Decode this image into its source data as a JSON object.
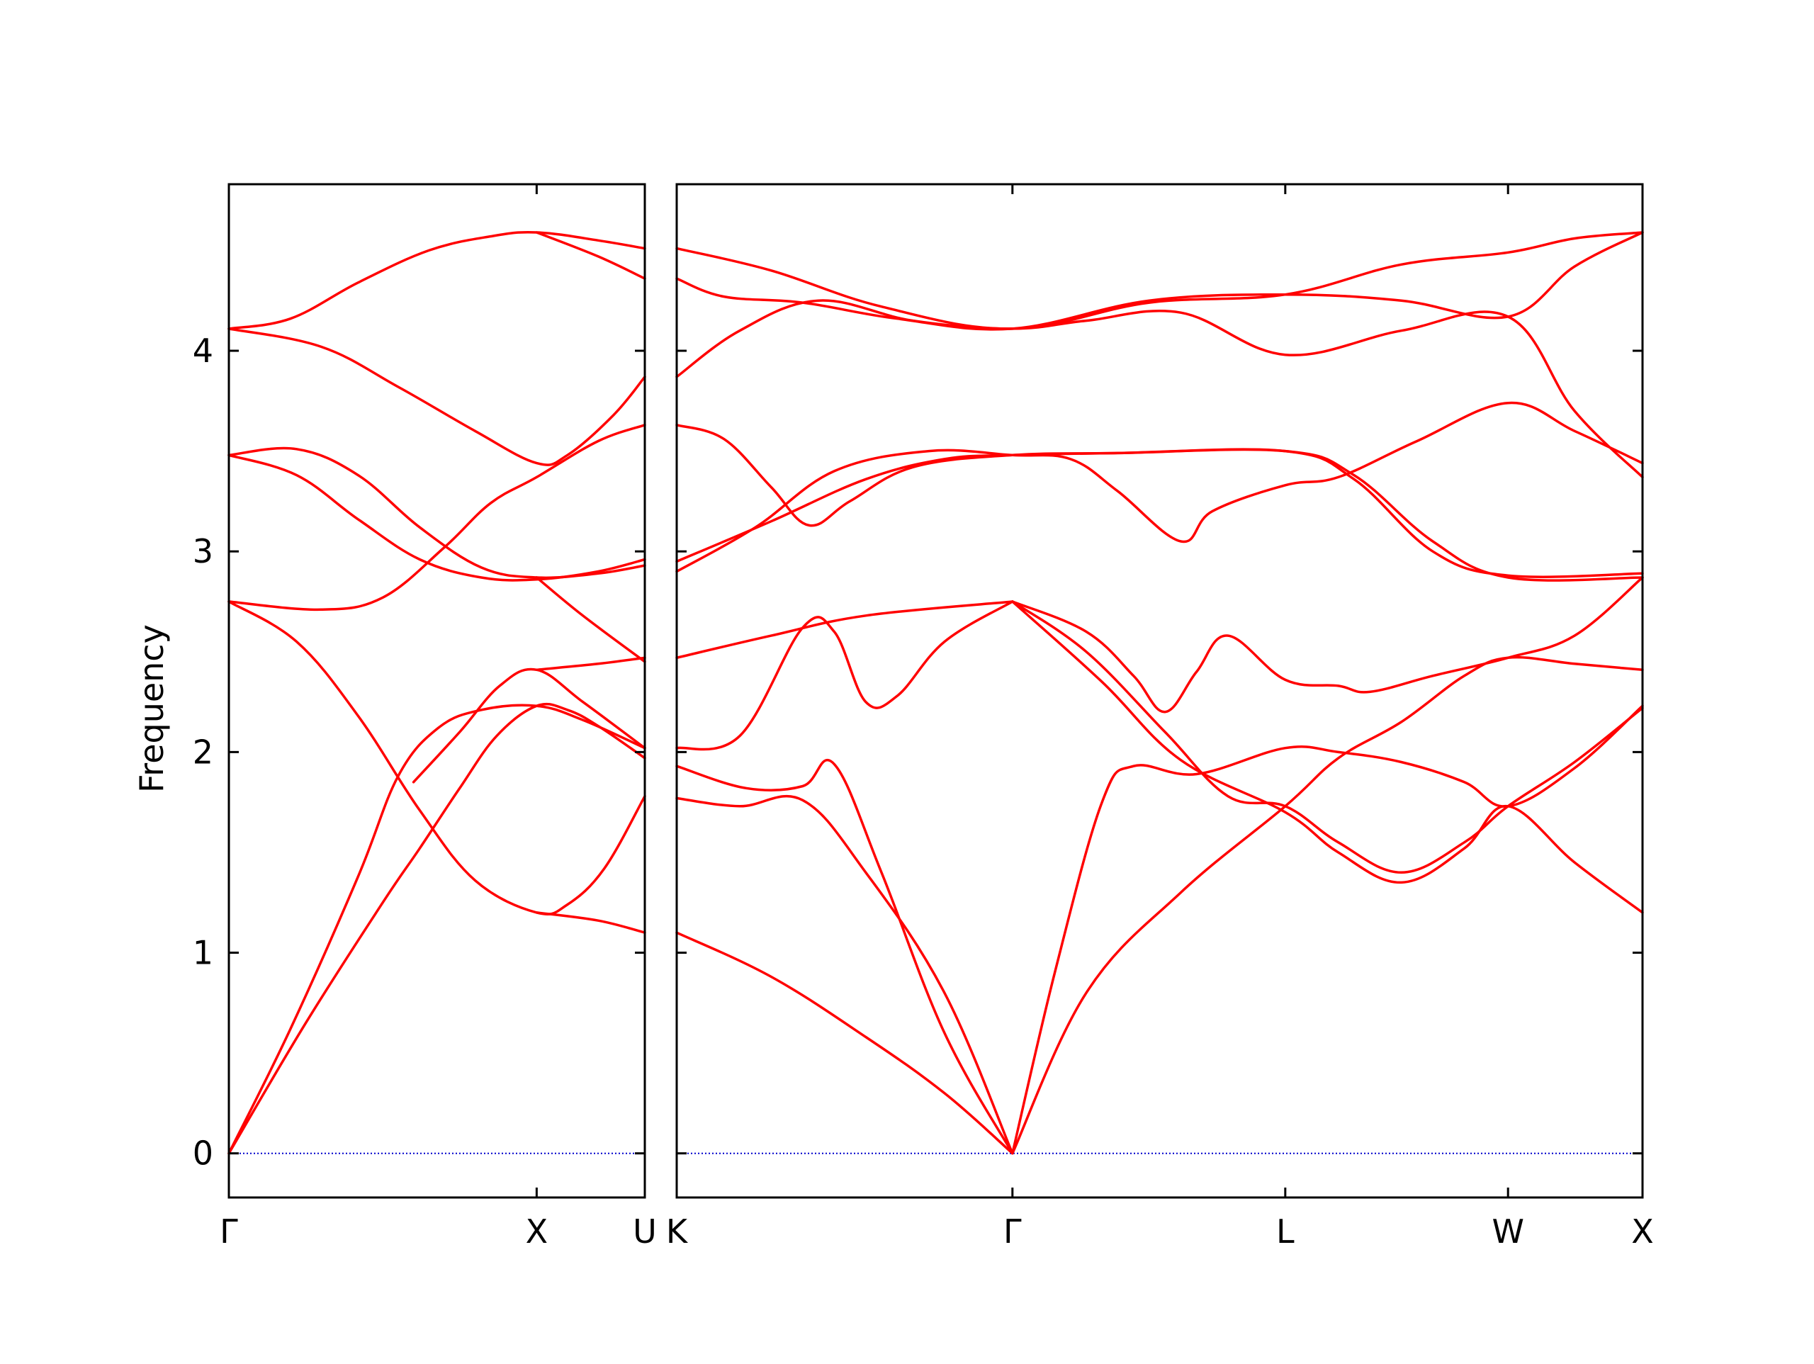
{
  "chart_data": {
    "type": "line",
    "ylabel": "Frequency",
    "ylim": [
      -0.22,
      4.83
    ],
    "yticks": [
      0,
      1,
      2,
      3,
      4
    ],
    "line_color": "#ff0000",
    "zero_line_color": "#0000cc",
    "grid": false,
    "legend": "none",
    "panels": [
      {
        "name": "left",
        "xlim": [
          0,
          1.3514
        ],
        "ticks": [
          {
            "label": "Γ",
            "x": 0
          },
          {
            "label": "X",
            "x": 1.0
          },
          {
            "label": "U",
            "x": 1.3514
          }
        ],
        "bands": [
          [
            [
              0,
              0
            ],
            [
              0.25,
              0.65
            ],
            [
              0.5,
              1.25
            ],
            [
              0.62,
              1.52
            ],
            [
              0.75,
              1.82
            ],
            [
              0.87,
              2.08
            ],
            [
              1.0,
              2.23
            ],
            [
              1.1,
              2.21
            ],
            [
              1.2,
              2.13
            ],
            [
              1.3514,
              1.97
            ]
          ],
          [
            [
              0,
              0
            ],
            [
              0.2,
              0.62
            ],
            [
              0.42,
              1.38
            ],
            [
              0.55,
              1.88
            ],
            [
              0.68,
              2.12
            ],
            [
              0.82,
              2.21
            ],
            [
              1.0,
              2.23
            ],
            [
              1.15,
              2.16
            ],
            [
              1.3514,
              2.02
            ]
          ],
          [
            [
              0,
              2.75
            ],
            [
              0.22,
              2.55
            ],
            [
              0.42,
              2.18
            ],
            [
              0.62,
              1.71
            ],
            [
              0.8,
              1.36
            ],
            [
              1.0,
              1.2
            ],
            [
              1.1,
              1.24
            ],
            [
              1.22,
              1.42
            ],
            [
              1.3514,
              1.78
            ]
          ],
          [
            [
              0,
              2.75
            ],
            [
              0.3,
              2.71
            ],
            [
              0.5,
              2.77
            ],
            [
              0.7,
              3.02
            ],
            [
              0.85,
              3.24
            ],
            [
              1.0,
              3.37
            ],
            [
              1.2,
              3.55
            ],
            [
              1.3514,
              3.63
            ]
          ],
          [
            [
              0,
              3.48
            ],
            [
              0.22,
              3.51
            ],
            [
              0.42,
              3.38
            ],
            [
              0.62,
              3.12
            ],
            [
              0.82,
              2.92
            ],
            [
              1.0,
              2.87
            ],
            [
              1.2,
              2.89
            ],
            [
              1.3514,
              2.93
            ]
          ],
          [
            [
              0,
              3.48
            ],
            [
              0.22,
              3.38
            ],
            [
              0.42,
              3.16
            ],
            [
              0.62,
              2.96
            ],
            [
              0.82,
              2.87
            ],
            [
              1.0,
              2.86
            ],
            [
              1.2,
              2.9
            ],
            [
              1.3514,
              2.96
            ]
          ],
          [
            [
              0,
              4.11
            ],
            [
              0.3,
              4.02
            ],
            [
              0.55,
              3.82
            ],
            [
              0.8,
              3.6
            ],
            [
              1.0,
              3.44
            ],
            [
              1.1,
              3.48
            ],
            [
              1.25,
              3.68
            ],
            [
              1.3514,
              3.87
            ]
          ],
          [
            [
              0,
              4.11
            ],
            [
              0.2,
              4.16
            ],
            [
              0.42,
              4.34
            ],
            [
              0.65,
              4.5
            ],
            [
              0.85,
              4.57
            ],
            [
              1.0,
              4.59
            ],
            [
              1.2,
              4.55
            ],
            [
              1.3514,
              4.51
            ]
          ],
          [
            [
              1.0,
              4.59
            ],
            [
              1.2,
              4.47
            ],
            [
              1.3514,
              4.36
            ]
          ],
          [
            [
              1.0,
              2.87
            ],
            [
              1.15,
              2.68
            ],
            [
              1.3514,
              2.45
            ]
          ],
          [
            [
              1.0,
              2.41
            ],
            [
              1.2,
              2.44
            ],
            [
              1.3514,
              2.47
            ]
          ],
          [
            [
              0.6,
              1.85
            ],
            [
              0.75,
              2.1
            ],
            [
              0.88,
              2.33
            ],
            [
              1.0,
              2.41
            ],
            [
              1.15,
              2.25
            ],
            [
              1.3514,
              2.02
            ]
          ],
          [
            [
              1.0,
              1.2
            ],
            [
              1.2,
              1.16
            ],
            [
              1.3514,
              1.1
            ]
          ]
        ]
      },
      {
        "name": "right",
        "xlim": [
          0,
          3.0657
        ],
        "ticks": [
          {
            "label": "K",
            "x": 0
          },
          {
            "label": "Γ",
            "x": 1.0657
          },
          {
            "label": "L",
            "x": 1.9317
          },
          {
            "label": "W",
            "x": 2.6388
          },
          {
            "label": "X",
            "x": 3.0657
          }
        ],
        "bands": [
          [
            [
              0,
              1.1
            ],
            [
              0.3,
              0.88
            ],
            [
              0.6,
              0.58
            ],
            [
              0.85,
              0.3
            ],
            [
              1.0657,
              0
            ]
          ],
          [
            [
              0,
              1.77
            ],
            [
              0.2,
              1.73
            ],
            [
              0.4,
              1.76
            ],
            [
              0.6,
              1.4
            ],
            [
              0.85,
              0.8
            ],
            [
              1.0657,
              0
            ]
          ],
          [
            [
              0,
              1.93
            ],
            [
              0.22,
              1.82
            ],
            [
              0.4,
              1.83
            ],
            [
              0.5,
              1.94
            ],
            [
              0.65,
              1.4
            ],
            [
              0.85,
              0.6
            ],
            [
              1.0657,
              0
            ]
          ],
          [
            [
              1.0657,
              0
            ],
            [
              1.3,
              0.8
            ],
            [
              1.6,
              1.3
            ],
            [
              1.9317,
              1.73
            ],
            [
              2.1,
              1.97
            ],
            [
              2.3,
              2.15
            ],
            [
              2.5,
              2.38
            ],
            [
              2.6388,
              2.47
            ],
            [
              2.85,
              2.44
            ],
            [
              3.0657,
              2.41
            ]
          ],
          [
            [
              1.0657,
              0
            ],
            [
              1.2,
              0.9
            ],
            [
              1.35,
              1.75
            ],
            [
              1.45,
              1.93
            ],
            [
              1.65,
              1.89
            ],
            [
              1.9317,
              2.02
            ],
            [
              2.1,
              2.0
            ],
            [
              2.3,
              1.95
            ],
            [
              2.5,
              1.85
            ],
            [
              2.6388,
              1.73
            ],
            [
              2.85,
              1.92
            ],
            [
              3.0657,
              2.23
            ]
          ],
          [
            [
              1.0657,
              2.75
            ],
            [
              1.3,
              2.5
            ],
            [
              1.55,
              2.1
            ],
            [
              1.75,
              1.78
            ],
            [
              1.9317,
              1.73
            ],
            [
              2.1,
              1.55
            ],
            [
              2.3,
              1.4
            ],
            [
              2.5,
              1.55
            ],
            [
              2.6388,
              1.73
            ],
            [
              2.85,
              1.95
            ],
            [
              3.0657,
              2.22
            ]
          ],
          [
            [
              1.0657,
              2.75
            ],
            [
              1.3,
              2.6
            ],
            [
              1.45,
              2.38
            ],
            [
              1.55,
              2.2
            ],
            [
              1.65,
              2.4
            ],
            [
              1.75,
              2.58
            ],
            [
              1.9317,
              2.36
            ],
            [
              2.1,
              2.33
            ],
            [
              2.2,
              2.3
            ],
            [
              2.4,
              2.38
            ],
            [
              2.6388,
              2.47
            ],
            [
              2.85,
              2.58
            ],
            [
              3.0657,
              2.87
            ]
          ],
          [
            [
              0,
              2.02
            ],
            [
              0.2,
              2.08
            ],
            [
              0.4,
              2.62
            ],
            [
              0.5,
              2.6
            ],
            [
              0.6,
              2.25
            ],
            [
              0.7,
              2.28
            ],
            [
              0.85,
              2.55
            ],
            [
              1.0657,
              2.75
            ]
          ],
          [
            [
              0,
              2.47
            ],
            [
              0.3,
              2.58
            ],
            [
              0.6,
              2.68
            ],
            [
              1.0657,
              2.75
            ]
          ],
          [
            [
              1.0657,
              2.75
            ],
            [
              1.35,
              2.35
            ],
            [
              1.6,
              1.96
            ],
            [
              1.9317,
              1.7
            ],
            [
              2.1,
              1.5
            ],
            [
              2.3,
              1.35
            ],
            [
              2.5,
              1.52
            ],
            [
              2.6388,
              1.73
            ],
            [
              2.85,
              1.45
            ],
            [
              3.0657,
              1.2
            ]
          ],
          [
            [
              0,
              2.95
            ],
            [
              0.3,
              3.15
            ],
            [
              0.6,
              3.36
            ],
            [
              0.85,
              3.46
            ],
            [
              1.0657,
              3.48
            ],
            [
              1.4,
              3.49
            ],
            [
              1.9317,
              3.5
            ],
            [
              2.15,
              3.38
            ],
            [
              2.4,
              3.05
            ],
            [
              2.6388,
              2.87
            ],
            [
              3.0657,
              2.87
            ]
          ],
          [
            [
              0,
              2.9
            ],
            [
              0.25,
              3.12
            ],
            [
              0.5,
              3.4
            ],
            [
              0.8,
              3.5
            ],
            [
              1.0657,
              3.48
            ],
            [
              1.25,
              3.46
            ],
            [
              1.4,
              3.3
            ],
            [
              1.6,
              3.05
            ],
            [
              1.7,
              3.2
            ],
            [
              1.9317,
              3.33
            ],
            [
              2.1,
              3.37
            ],
            [
              2.35,
              3.55
            ],
            [
              2.6388,
              3.74
            ],
            [
              2.85,
              3.6
            ],
            [
              3.0657,
              3.44
            ]
          ],
          [
            [
              0,
              3.63
            ],
            [
              0.15,
              3.56
            ],
            [
              0.3,
              3.32
            ],
            [
              0.42,
              3.13
            ],
            [
              0.55,
              3.25
            ],
            [
              0.75,
              3.42
            ],
            [
              1.0657,
              3.48
            ],
            [
              1.4,
              3.49
            ],
            [
              1.9317,
              3.5
            ],
            [
              2.15,
              3.36
            ],
            [
              2.4,
              3.0
            ],
            [
              2.6388,
              2.88
            ],
            [
              3.0657,
              2.89
            ]
          ],
          [
            [
              0,
              3.87
            ],
            [
              0.2,
              4.1
            ],
            [
              0.45,
              4.25
            ],
            [
              0.75,
              4.15
            ],
            [
              1.0657,
              4.11
            ],
            [
              1.3,
              4.15
            ],
            [
              1.6,
              4.19
            ],
            [
              1.9317,
              3.98
            ],
            [
              2.3,
              4.1
            ],
            [
              2.6388,
              4.17
            ],
            [
              2.85,
              3.7
            ],
            [
              3.0657,
              3.37
            ]
          ],
          [
            [
              0,
              4.36
            ],
            [
              0.15,
              4.27
            ],
            [
              0.4,
              4.24
            ],
            [
              0.7,
              4.16
            ],
            [
              1.0657,
              4.11
            ],
            [
              1.5,
              4.25
            ],
            [
              1.9317,
              4.28
            ],
            [
              2.3,
              4.25
            ],
            [
              2.6388,
              4.17
            ],
            [
              2.85,
              4.42
            ],
            [
              3.0657,
              4.59
            ]
          ],
          [
            [
              0,
              4.51
            ],
            [
              0.3,
              4.4
            ],
            [
              0.65,
              4.22
            ],
            [
              1.0657,
              4.11
            ],
            [
              1.5,
              4.24
            ],
            [
              1.9317,
              4.28
            ],
            [
              2.3,
              4.43
            ],
            [
              2.6388,
              4.49
            ],
            [
              2.85,
              4.56
            ],
            [
              3.0657,
              4.59
            ]
          ]
        ]
      }
    ]
  }
}
